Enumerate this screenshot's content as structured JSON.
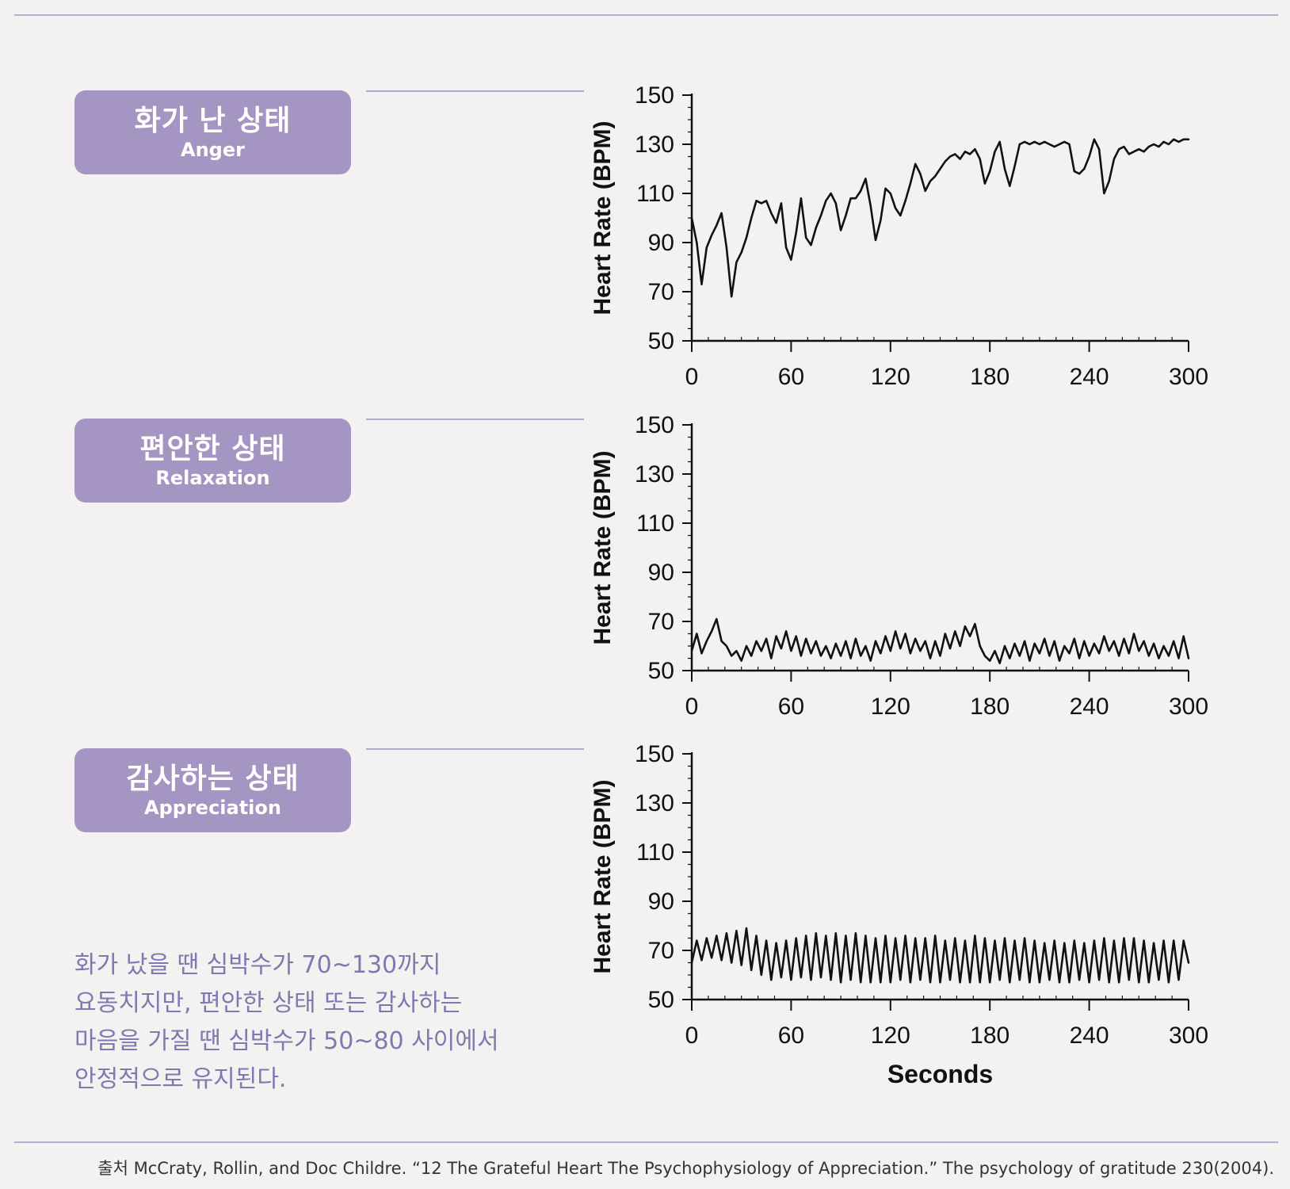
{
  "panels": [
    {
      "label_ko": "화가 난 상태",
      "label_en": "Anger"
    },
    {
      "label_ko": "편안한 상태",
      "label_en": "Relaxation"
    },
    {
      "label_ko": "감사하는 상태",
      "label_en": "Appreciation"
    }
  ],
  "caption": "화가 났을 땐 심박수가 70~130까지 요동치지만, 편안한 상태 또는 감사하는 마음을 가질 땐 심박수가 50~80 사이에서 안정적으로 유지된다.",
  "source": "출처 McCraty, Rollin, and Doc Childre. “12 The Grateful Heart The Psychophysiology of Appreciation.” The psychology of gratitude 230(2004).",
  "colors": {
    "accent": "#a595c2",
    "caption_text": "#8377b0",
    "rule": "#b7add4",
    "line": "#111111"
  },
  "chart_data": [
    {
      "type": "line",
      "series": [
        {
          "name": "",
          "x": [
            0,
            3,
            6,
            9,
            12,
            15,
            18,
            21,
            24,
            27,
            30,
            33,
            36,
            39,
            42,
            45,
            48,
            51,
            54,
            57,
            60,
            63,
            66,
            69,
            72,
            75,
            78,
            81,
            84,
            87,
            90,
            93,
            96,
            99,
            102,
            105,
            108,
            111,
            114,
            117,
            120,
            123,
            126,
            129,
            132,
            135,
            138,
            141,
            144,
            147,
            150,
            153,
            156,
            159,
            162,
            165,
            168,
            171,
            174,
            177,
            180,
            183,
            186,
            189,
            192,
            195,
            198,
            201,
            204,
            207,
            210,
            213,
            216,
            219,
            222,
            225,
            228,
            231,
            234,
            237,
            240,
            243,
            246,
            249,
            252,
            255,
            258,
            261,
            264,
            267,
            270,
            273,
            276,
            279,
            282,
            285,
            288,
            291,
            294,
            297,
            300
          ],
          "values": [
            100,
            90,
            73,
            88,
            93,
            97,
            102,
            88,
            68,
            82,
            86,
            92,
            100,
            107,
            106,
            107,
            102,
            98,
            106,
            88,
            83,
            94,
            108,
            92,
            89,
            96,
            101,
            107,
            110,
            106,
            95,
            101,
            108,
            108,
            111,
            116,
            105,
            91,
            99,
            112,
            110,
            104,
            101,
            107,
            114,
            122,
            118,
            111,
            115,
            117,
            120,
            123,
            125,
            126,
            124,
            127,
            126,
            128,
            124,
            114,
            119,
            127,
            131,
            120,
            113,
            121,
            130,
            131,
            130,
            131,
            130,
            131,
            130,
            129,
            130,
            131,
            130,
            119,
            118,
            120,
            125,
            132,
            128,
            110,
            115,
            124,
            128,
            129,
            126,
            127,
            128,
            127,
            129,
            130,
            129,
            131,
            130,
            132,
            131,
            132,
            132
          ]
        }
      ],
      "xlabel": "",
      "ylabel": "Heart Rate (BPM)",
      "xlim": [
        0,
        300
      ],
      "ylim": [
        50,
        150
      ],
      "xticks": [
        0,
        60,
        120,
        180,
        240,
        300
      ],
      "yticks": [
        50,
        70,
        90,
        110,
        130,
        150
      ]
    },
    {
      "type": "line",
      "series": [
        {
          "name": "",
          "x": [
            0,
            3,
            6,
            9,
            12,
            15,
            18,
            21,
            24,
            27,
            30,
            33,
            36,
            39,
            42,
            45,
            48,
            51,
            54,
            57,
            60,
            63,
            66,
            69,
            72,
            75,
            78,
            81,
            84,
            87,
            90,
            93,
            96,
            99,
            102,
            105,
            108,
            111,
            114,
            117,
            120,
            123,
            126,
            129,
            132,
            135,
            138,
            141,
            144,
            147,
            150,
            153,
            156,
            159,
            162,
            165,
            168,
            171,
            174,
            177,
            180,
            183,
            186,
            189,
            192,
            195,
            198,
            201,
            204,
            207,
            210,
            213,
            216,
            219,
            222,
            225,
            228,
            231,
            234,
            237,
            240,
            243,
            246,
            249,
            252,
            255,
            258,
            261,
            264,
            267,
            270,
            273,
            276,
            279,
            282,
            285,
            288,
            291,
            294,
            297,
            300
          ],
          "values": [
            58,
            65,
            57,
            62,
            66,
            71,
            62,
            60,
            56,
            58,
            54,
            60,
            56,
            62,
            58,
            63,
            55,
            64,
            59,
            66,
            58,
            64,
            56,
            63,
            57,
            62,
            56,
            60,
            55,
            61,
            56,
            62,
            55,
            63,
            56,
            60,
            54,
            62,
            57,
            64,
            58,
            66,
            59,
            65,
            57,
            63,
            58,
            62,
            55,
            62,
            56,
            65,
            59,
            66,
            60,
            68,
            64,
            69,
            60,
            56,
            54,
            58,
            53,
            60,
            55,
            61,
            56,
            62,
            54,
            61,
            57,
            63,
            56,
            62,
            54,
            60,
            57,
            63,
            55,
            62,
            56,
            61,
            57,
            64,
            58,
            62,
            56,
            63,
            57,
            65,
            58,
            62,
            56,
            61,
            55,
            60,
            56,
            62,
            55,
            64,
            55
          ]
        }
      ],
      "xlabel": "",
      "ylabel": "Heart Rate (BPM)",
      "xlim": [
        0,
        300
      ],
      "ylim": [
        50,
        150
      ],
      "xticks": [
        0,
        60,
        120,
        180,
        240,
        300
      ],
      "yticks": [
        50,
        70,
        90,
        110,
        130,
        150
      ]
    },
    {
      "type": "line",
      "series": [
        {
          "name": "",
          "x": [
            0,
            3,
            6,
            9,
            12,
            15,
            18,
            21,
            24,
            27,
            30,
            33,
            36,
            39,
            42,
            45,
            48,
            51,
            54,
            57,
            60,
            63,
            66,
            69,
            72,
            75,
            78,
            81,
            84,
            87,
            90,
            93,
            96,
            99,
            102,
            105,
            108,
            111,
            114,
            117,
            120,
            123,
            126,
            129,
            132,
            135,
            138,
            141,
            144,
            147,
            150,
            153,
            156,
            159,
            162,
            165,
            168,
            171,
            174,
            177,
            180,
            183,
            186,
            189,
            192,
            195,
            198,
            201,
            204,
            207,
            210,
            213,
            216,
            219,
            222,
            225,
            228,
            231,
            234,
            237,
            240,
            243,
            246,
            249,
            252,
            255,
            258,
            261,
            264,
            267,
            270,
            273,
            276,
            279,
            282,
            285,
            288,
            291,
            294,
            297,
            300
          ],
          "values": [
            65,
            74,
            66,
            75,
            67,
            76,
            66,
            77,
            65,
            78,
            64,
            79,
            62,
            76,
            60,
            74,
            58,
            73,
            59,
            74,
            58,
            75,
            59,
            76,
            58,
            77,
            59,
            76,
            58,
            77,
            57,
            76,
            58,
            77,
            57,
            76,
            57,
            75,
            57,
            76,
            57,
            75,
            58,
            76,
            57,
            75,
            58,
            75,
            57,
            76,
            57,
            74,
            58,
            75,
            57,
            74,
            57,
            76,
            57,
            75,
            57,
            74,
            58,
            75,
            57,
            74,
            58,
            75,
            57,
            74,
            57,
            73,
            58,
            74,
            57,
            73,
            57,
            74,
            58,
            73,
            57,
            74,
            58,
            75,
            57,
            74,
            57,
            75,
            58,
            75,
            57,
            74,
            57,
            73,
            58,
            74,
            57,
            74,
            58,
            74,
            65
          ]
        }
      ],
      "xlabel": "Seconds",
      "ylabel": "Heart Rate (BPM)",
      "xlim": [
        0,
        300
      ],
      "ylim": [
        50,
        150
      ],
      "xticks": [
        0,
        60,
        120,
        180,
        240,
        300
      ],
      "yticks": [
        50,
        70,
        90,
        110,
        130,
        150
      ]
    }
  ]
}
